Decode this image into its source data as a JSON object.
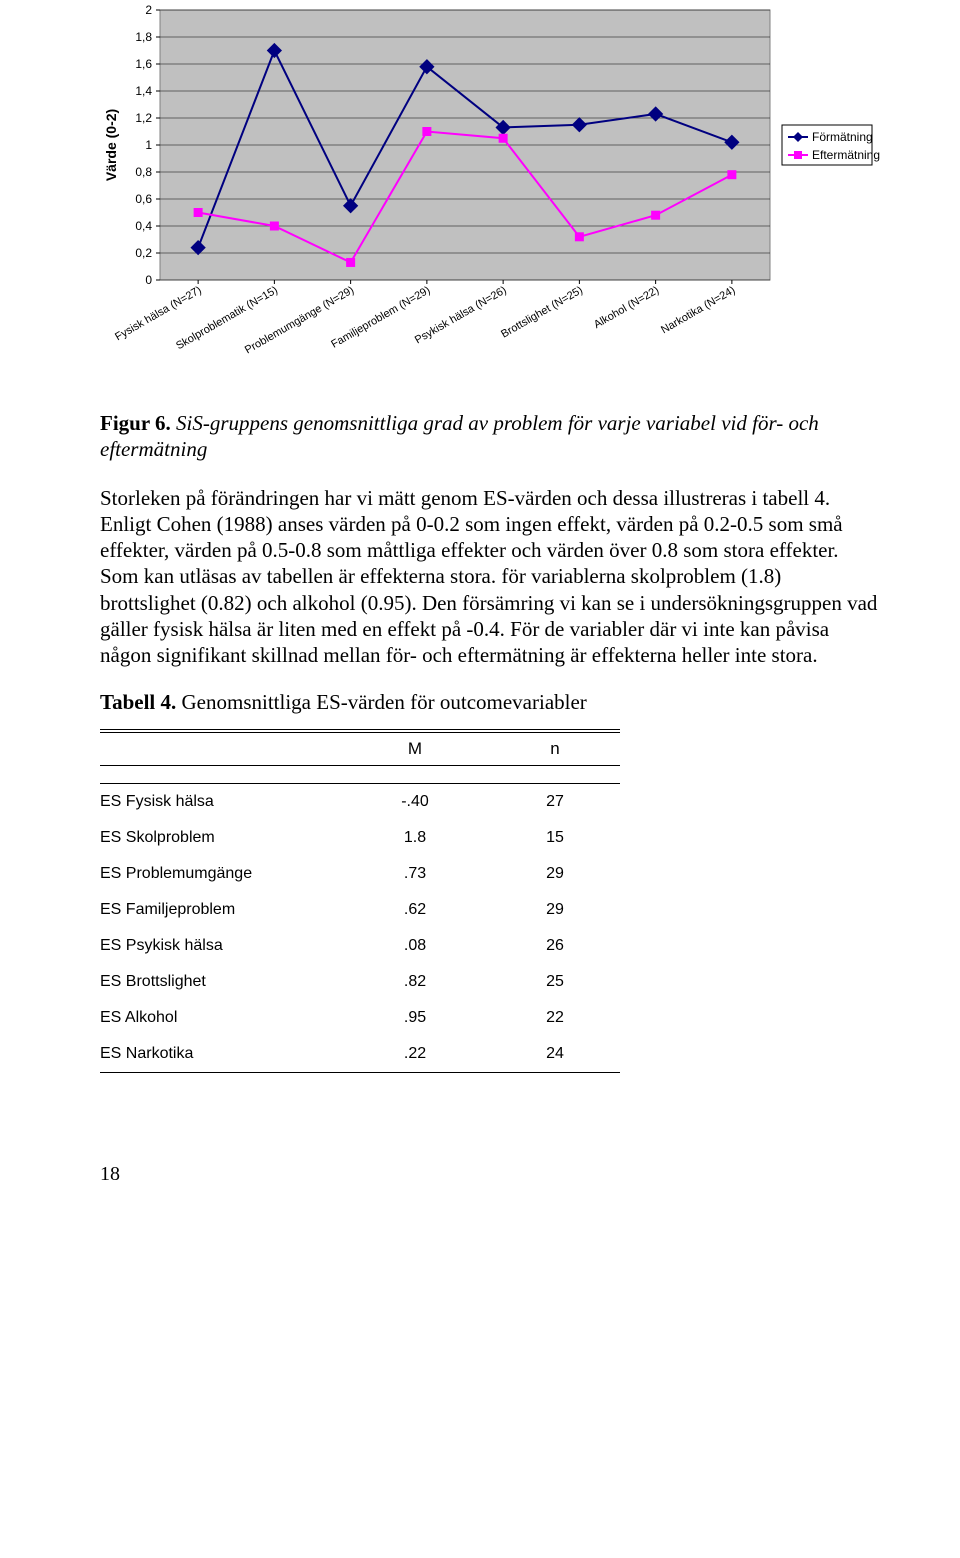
{
  "chart": {
    "type": "line",
    "y_axis_label": "Värde (0-2)",
    "ylim": [
      0,
      2
    ],
    "ytick_step": 0.2,
    "ytick_labels": [
      "0",
      "0,2",
      "0,4",
      "0,6",
      "0,8",
      "1",
      "1,2",
      "1,4",
      "1,6",
      "1,8",
      "2"
    ],
    "tick_fontsize": 12,
    "axis_label_fontsize": 14,
    "plot_bg": "#c0c0c0",
    "outer_bg": "#ffffff",
    "grid_color": "#000000",
    "border_color": "#808080",
    "categories": [
      "Fysisk hälsa (N=27)",
      "Skolproblematik (N=15)",
      "Problemumgänge (N=29)",
      "Familjeproblem (N=29)",
      "Psykisk hälsa (N=26)",
      "Brottslighet (N=25)",
      "Alkohol (N=22)",
      "Narkotika (N=24)"
    ],
    "series": [
      {
        "id": "formatning",
        "name": "Förmätning",
        "color": "#000080",
        "marker": "diamond",
        "marker_size": 9,
        "line_width": 2,
        "values": [
          0.24,
          1.7,
          0.55,
          1.58,
          1.13,
          1.15,
          1.23,
          1.02
        ]
      },
      {
        "id": "eftermatning",
        "name": "Eftermätning",
        "color": "#ff00ff",
        "marker": "square",
        "marker_size": 8,
        "line_width": 2,
        "values": [
          0.5,
          0.4,
          0.13,
          1.1,
          1.05,
          0.32,
          0.48,
          0.78
        ]
      }
    ],
    "legend": {
      "position": "right",
      "border_color": "#000000",
      "bg": "#ffffff",
      "fontsize": 12
    }
  },
  "figure_caption": {
    "label": "Figur 6.",
    "text": "SiS-gruppens genomsnittliga grad av problem för varje variabel vid för- och eftermätning"
  },
  "body_paragraph": "Storleken på förändringen har vi mätt genom ES-värden och dessa illustreras i tabell 4. Enligt Cohen (1988) anses värden på 0-0.2 som ingen effekt, värden på 0.2-0.5 som små effekter, värden på 0.5-0.8 som måttliga effekter och värden över 0.8 som stora effekter. Som kan utläsas av tabellen är effekterna stora. för variablerna skolproblem (1.8) brottslighet (0.82) och alkohol (0.95). Den försämring vi kan se i undersökningsgruppen vad gäller fysisk hälsa är liten med en effekt på -0.4. För de variabler där vi inte kan påvisa någon signifikant skillnad mellan för- och eftermätning är effekterna heller inte stora.",
  "table_caption": {
    "label": "Tabell 4.",
    "text": "Genomsnittliga ES-värden för outcomevariabler"
  },
  "es_table": {
    "columns": [
      "M",
      "n"
    ],
    "rows": [
      {
        "variable": "ES Fysisk hälsa",
        "M": "-.40",
        "n": "27"
      },
      {
        "variable": "ES Skolproblem",
        "M": "1.8",
        "n": "15"
      },
      {
        "variable": "ES Problemumgänge",
        "M": ".73",
        "n": "29"
      },
      {
        "variable": "ES Familjeproblem",
        "M": ".62",
        "n": "29"
      },
      {
        "variable": "ES Psykisk hälsa",
        "M": ".08",
        "n": "26"
      },
      {
        "variable": "ES Brottslighet",
        "M": ".82",
        "n": "25"
      },
      {
        "variable": "ES Alkohol",
        "M": ".95",
        "n": "22"
      },
      {
        "variable": "ES Narkotika",
        "M": ".22",
        "n": "24"
      }
    ]
  },
  "page_number": "18"
}
